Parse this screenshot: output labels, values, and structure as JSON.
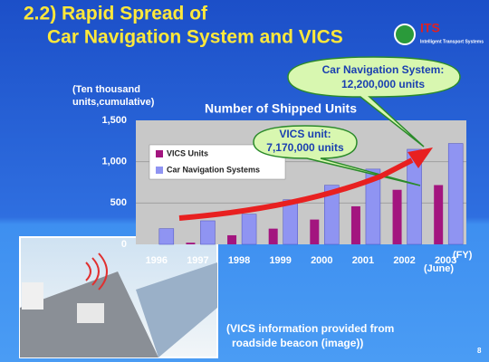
{
  "header": {
    "title_lines": [
      "2.2) Rapid Spread of",
      "Car Navigation System and VICS"
    ],
    "logo": "ITS",
    "logo_sub": "Intelligent Transport Systems"
  },
  "chart_data": {
    "type": "bar",
    "title": "Number of Shipped Units",
    "y_label_lines": [
      "(Ten thousand",
      "units,cumulative)"
    ],
    "x_label": "(FY)",
    "x_note": "(June)",
    "categories": [
      "1996",
      "1997",
      "1998",
      "1999",
      "2000",
      "2001",
      "2002",
      "2003"
    ],
    "series": [
      {
        "name": "VICS Units",
        "color": "#a3157f",
        "values": [
          0,
          20,
          110,
          190,
          300,
          460,
          660,
          717
        ]
      },
      {
        "name": "Car Navigation Systems",
        "color": "#8f94f2",
        "values": [
          190,
          285,
          365,
          540,
          715,
          910,
          1150,
          1220
        ]
      }
    ],
    "ylim": [
      0,
      1500
    ],
    "yticks": [
      0,
      500,
      {
        "value": 1000,
        "label": "1,000"
      },
      {
        "value": 1500,
        "label": "1,500"
      }
    ],
    "grid": true,
    "callouts": [
      [
        "Car Navigation System:",
        "12,200,000 units"
      ],
      [
        "VICS unit:",
        "7,170,000 units"
      ]
    ]
  },
  "caption_lines": [
    "(VICS information provided from",
    "roadside beacon (image))"
  ],
  "page_number": "8"
}
